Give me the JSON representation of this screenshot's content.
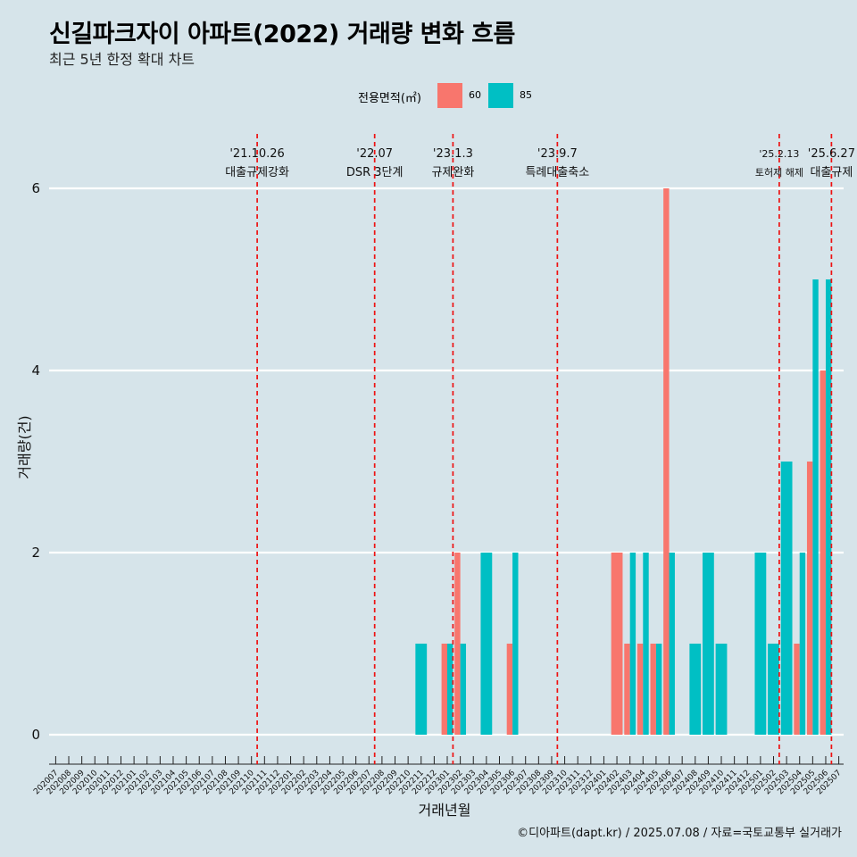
{
  "title": "신길파크자이 아파트(2022) 거래량 변화 흐름",
  "subtitle": "최근 5년 한정 확대 차트",
  "caption": "©디아파트(dapt.kr) / 2025.07.08 / 자료=국토교통부 실거래가",
  "legend": {
    "title": "전용면적(㎡)",
    "items": [
      {
        "label": "60",
        "color": "#f8766d"
      },
      {
        "label": "85",
        "color": "#00bfc4"
      }
    ]
  },
  "chart_data": {
    "type": "bar",
    "xlabel": "거래년월",
    "ylabel": "거래량(건)",
    "ylim": [
      0,
      6
    ],
    "yticks": [
      0,
      2,
      4,
      6
    ],
    "grid": "horizontal major lines",
    "legend_position": "top",
    "categories": [
      "202007",
      "202008",
      "202009",
      "202010",
      "202011",
      "202012",
      "202101",
      "202102",
      "202103",
      "202104",
      "202105",
      "202106",
      "202107",
      "202108",
      "202109",
      "202110",
      "202111",
      "202112",
      "202201",
      "202202",
      "202203",
      "202204",
      "202205",
      "202206",
      "202207",
      "202208",
      "202209",
      "202210",
      "202211",
      "202212",
      "202301",
      "202302",
      "202303",
      "202304",
      "202305",
      "202306",
      "202307",
      "202308",
      "202309",
      "202310",
      "202311",
      "202312",
      "202401",
      "202402",
      "202403",
      "202404",
      "202405",
      "202406",
      "202407",
      "202408",
      "202409",
      "202410",
      "202411",
      "202412",
      "202501",
      "202502",
      "202503",
      "202504",
      "202505",
      "202506",
      "202507"
    ],
    "series": [
      {
        "name": "60",
        "color": "#f8766d",
        "values": [
          0,
          0,
          0,
          0,
          0,
          0,
          0,
          0,
          0,
          0,
          0,
          0,
          0,
          0,
          0,
          0,
          0,
          0,
          0,
          0,
          0,
          0,
          0,
          0,
          0,
          0,
          0,
          0,
          0,
          0,
          1,
          2,
          0,
          0,
          0,
          1,
          0,
          0,
          0,
          0,
          0,
          0,
          0,
          2,
          1,
          1,
          1,
          6,
          0,
          0,
          0,
          0,
          0,
          0,
          0,
          0,
          0,
          1,
          3,
          4,
          0
        ]
      },
      {
        "name": "85",
        "color": "#00bfc4",
        "values": [
          0,
          0,
          0,
          0,
          0,
          0,
          0,
          0,
          0,
          0,
          0,
          0,
          0,
          0,
          0,
          0,
          0,
          0,
          0,
          0,
          0,
          0,
          0,
          0,
          0,
          0,
          0,
          0,
          1,
          0,
          1,
          1,
          0,
          2,
          0,
          2,
          0,
          0,
          0,
          0,
          0,
          0,
          0,
          0,
          2,
          2,
          1,
          2,
          0,
          1,
          2,
          1,
          0,
          0,
          2,
          1,
          3,
          2,
          5,
          5,
          0
        ]
      }
    ],
    "annotations": [
      {
        "month": "202110",
        "date": "'21.10.26",
        "text": "대출규제강화"
      },
      {
        "month": "202207",
        "date": "'22.07",
        "text": "DSR 3단계"
      },
      {
        "month": "202301",
        "date": "'23.1.3",
        "text": "규제완화"
      },
      {
        "month": "202309",
        "date": "'23.9.7",
        "text": "특례대출축소"
      },
      {
        "month": "202502",
        "date": "'25.2.13",
        "text": "토허제 해제"
      },
      {
        "month": "202506",
        "date": "'25.6.27",
        "text": "대출규제"
      }
    ]
  }
}
